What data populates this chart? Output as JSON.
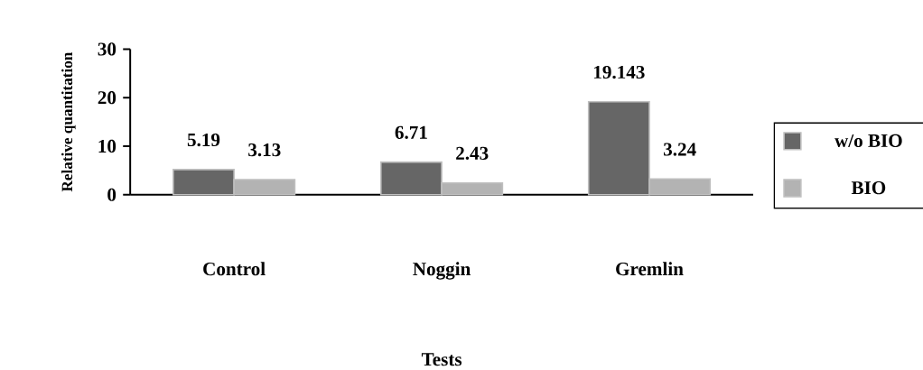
{
  "chart_data": {
    "type": "bar",
    "xlabel": "Tests",
    "ylabel": "Relative quantitation",
    "categories": [
      "Control",
      "Noggin",
      "Gremlin"
    ],
    "series": [
      {
        "name": "w/o BIO",
        "color": "#666666",
        "values": [
          5.19,
          6.71,
          19.143
        ]
      },
      {
        "name": "BIO",
        "color": "#b3b3b3",
        "values": [
          3.13,
          2.43,
          3.24
        ]
      }
    ],
    "ylim": [
      0,
      30
    ],
    "yticks": [
      0,
      10,
      20,
      30
    ],
    "data_labels": true,
    "legend": "right",
    "grid": false
  }
}
